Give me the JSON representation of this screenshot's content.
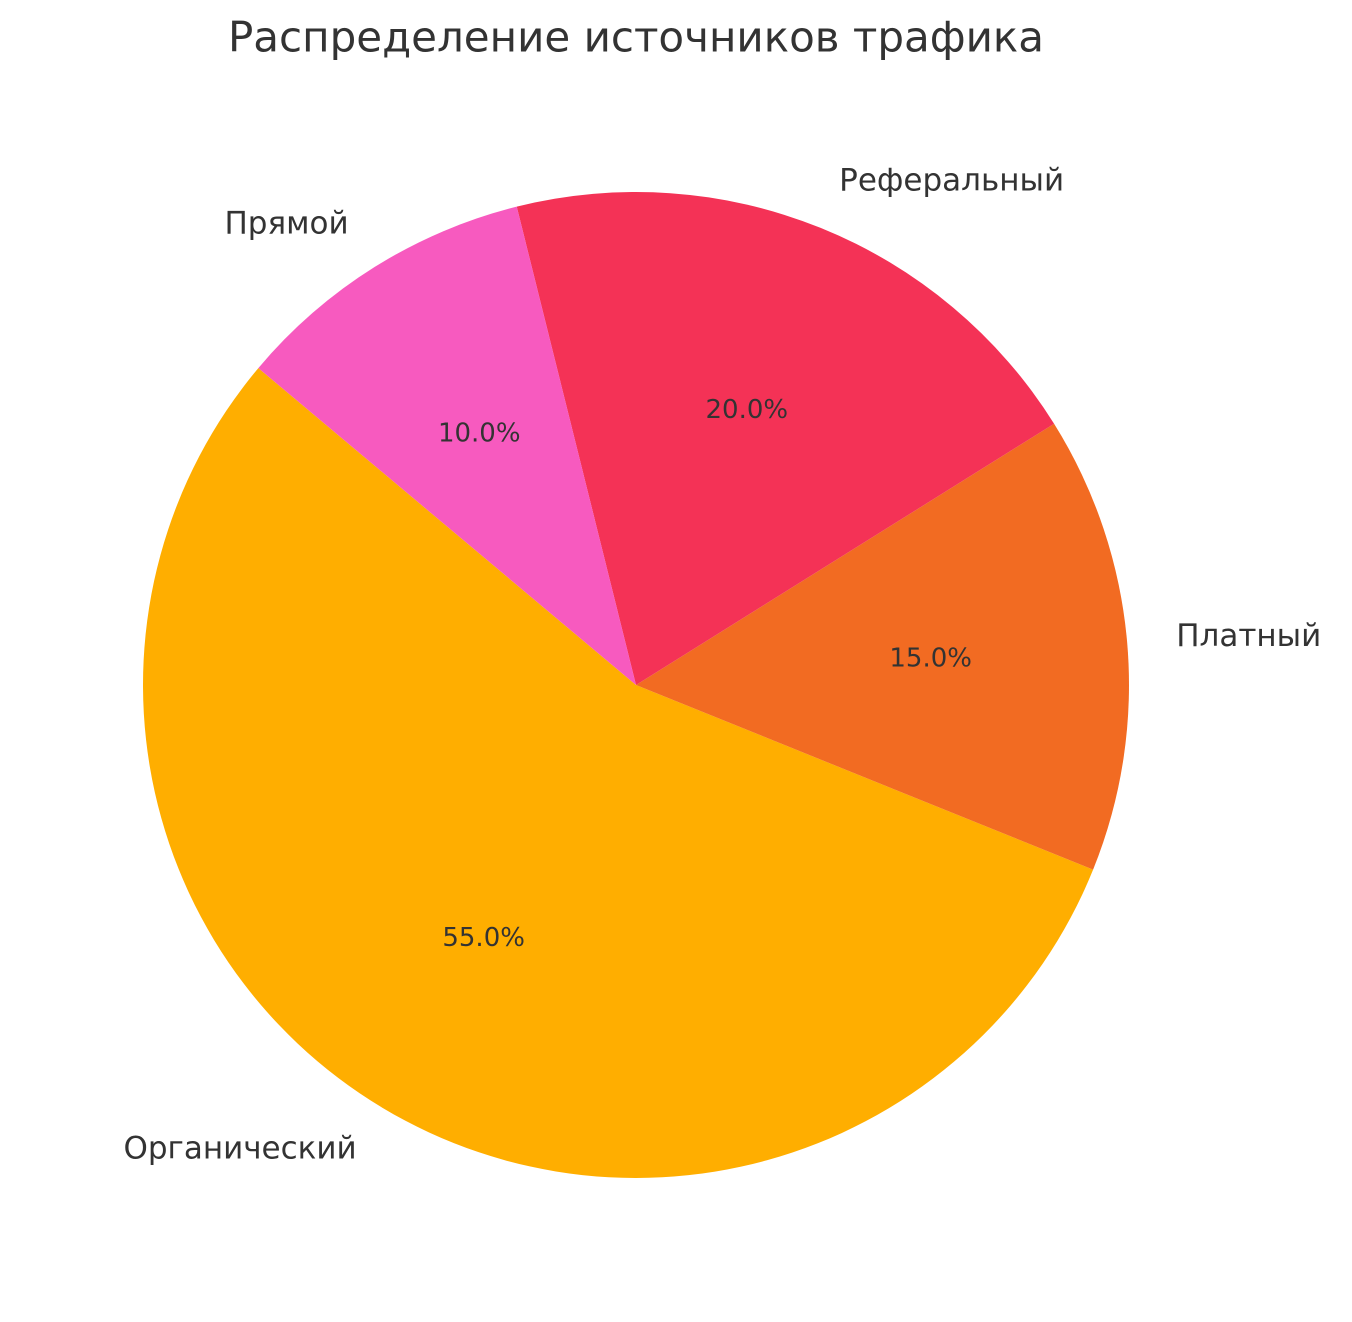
{
  "chart_data": {
    "type": "pie",
    "title": "Распределение источников трафика",
    "categories": [
      "Органический",
      "Платный",
      "Реферальный",
      "Прямой"
    ],
    "values": [
      55,
      15,
      20,
      10
    ],
    "value_labels": [
      "55.0%",
      "15.0%",
      "20.0%",
      "10.0%"
    ],
    "colors": [
      "#ffae00",
      "#f26b22",
      "#f43256",
      "#f75abf"
    ]
  }
}
